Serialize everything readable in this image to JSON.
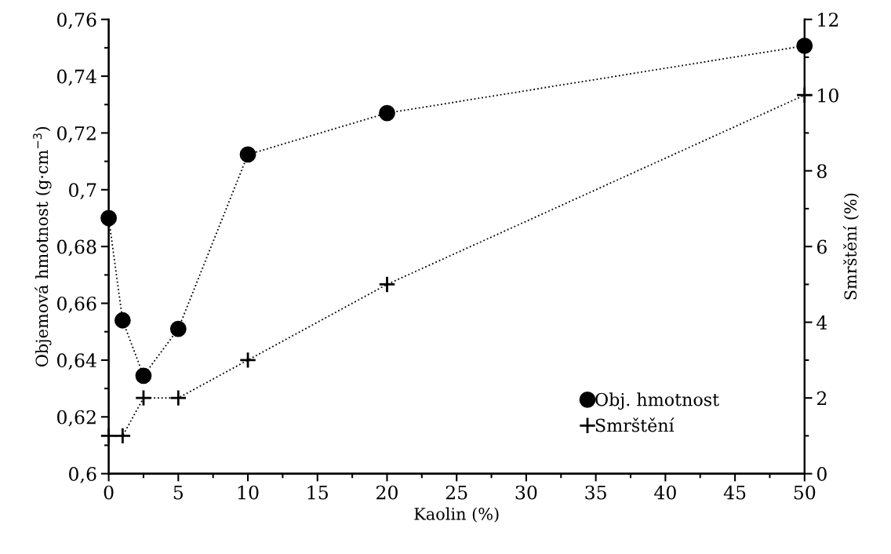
{
  "chart_data": {
    "type": "line",
    "xlabel": "Kaolin (%)",
    "ylabel": "Objemová hmotnost (g·cm$^{−3}$)",
    "y2label": "Smrštění (%)",
    "x": [
      0,
      1,
      2.5,
      5,
      10,
      20,
      50
    ],
    "series": [
      {
        "name": "Obj. hmotnost",
        "color": "#000000",
        "marker": "circle",
        "values": [
          0.69,
          0.654,
          0.6345,
          0.651,
          0.7124,
          0.727,
          0.7507
        ]
      },
      {
        "name": "Smrštění",
        "color": "#000000",
        "marker": "cross",
        "axis": "y2",
        "values": [
          1,
          1,
          2,
          2,
          3,
          5,
          10
        ]
      }
    ],
    "line_style": "dotted",
    "xlim": [
      0,
      50
    ],
    "xticks": [
      0,
      {
        "value": 2.5,
        "label": null
      },
      5,
      {
        "value": 7.5,
        "label": null
      },
      10,
      {
        "value": 12.5,
        "label": null
      },
      15,
      {
        "value": 17.5,
        "label": null
      },
      20,
      {
        "value": 22.5,
        "label": null
      },
      25,
      {
        "value": 27.5,
        "label": null
      },
      30,
      {
        "value": 32.5,
        "label": null
      },
      35,
      {
        "value": 37.5,
        "label": null
      },
      40,
      {
        "value": 42.5,
        "label": null
      },
      45,
      {
        "value": 47.5,
        "label": null
      },
      50
    ],
    "ylim": [
      0.6,
      0.76
    ],
    "yticks": [
      {
        "value": 0.6,
        "label": "0,6"
      },
      {
        "value": 0.61,
        "label": null
      },
      {
        "value": 0.62,
        "label": "0,62"
      },
      {
        "value": 0.63,
        "label": null
      },
      {
        "value": 0.64,
        "label": "0,64"
      },
      {
        "value": 0.65,
        "label": null
      },
      {
        "value": 0.66,
        "label": "0,66"
      },
      {
        "value": 0.67,
        "label": null
      },
      {
        "value": 0.68,
        "label": "0,68"
      },
      {
        "value": 0.69,
        "label": null
      },
      {
        "value": 0.7,
        "label": "0,7"
      },
      {
        "value": 0.71,
        "label": null
      },
      {
        "value": 0.72,
        "label": "0,72"
      },
      {
        "value": 0.73,
        "label": null
      },
      {
        "value": 0.74,
        "label": "0,74"
      },
      {
        "value": 0.75,
        "label": null
      },
      {
        "value": 0.76,
        "label": "0,76"
      }
    ],
    "y2lim": [
      0,
      12
    ],
    "y2ticks": [
      0,
      {
        "value": 1,
        "label": null
      },
      2,
      {
        "value": 3,
        "label": null
      },
      4,
      {
        "value": 5,
        "label": null
      },
      6,
      {
        "value": 7,
        "label": null
      },
      8,
      {
        "value": 9,
        "label": null
      },
      10,
      {
        "value": 11,
        "label": null
      },
      12
    ],
    "grid": false,
    "legend": "bottom right"
  }
}
